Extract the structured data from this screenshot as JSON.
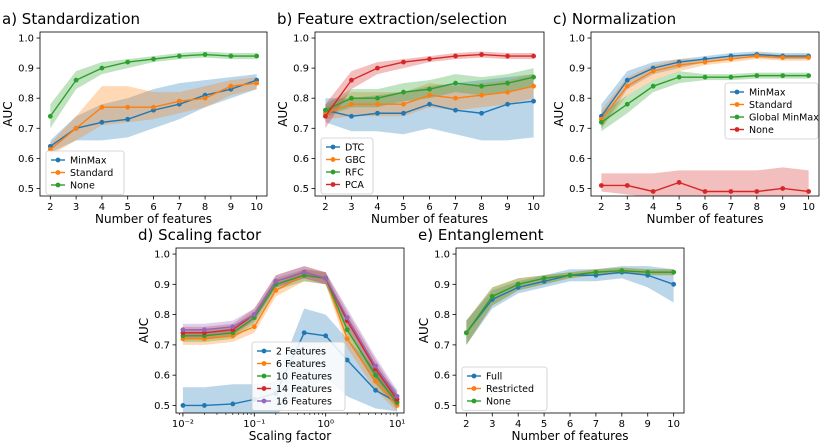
{
  "chart_data": [
    {
      "type": "line",
      "title": "a) Standardization",
      "xlabel": "Number of features",
      "ylabel": "AUC",
      "xscale": "linear",
      "xlim": [
        1.6,
        10.4
      ],
      "ylim": [
        0.475,
        1.02
      ],
      "xticks": [
        2,
        3,
        4,
        5,
        6,
        7,
        8,
        9,
        10
      ],
      "xtick_labels": [
        "2",
        "3",
        "4",
        "5",
        "6",
        "7",
        "8",
        "9",
        "10"
      ],
      "yticks": [
        0.5,
        0.6,
        0.7,
        0.8,
        0.9,
        1.0
      ],
      "ytick_labels": [
        "0.5",
        "0.6",
        "0.7",
        "0.8",
        "0.9",
        "1.0"
      ],
      "legend_position": "lower-left",
      "x": [
        2,
        3,
        4,
        5,
        6,
        7,
        8,
        9,
        10
      ],
      "series": [
        {
          "name": "MinMax",
          "color": "#1f77b4",
          "values": [
            0.64,
            0.7,
            0.72,
            0.73,
            0.76,
            0.78,
            0.81,
            0.83,
            0.86
          ],
          "lower": [
            0.62,
            0.66,
            0.66,
            0.67,
            0.7,
            0.73,
            0.77,
            0.8,
            0.83
          ],
          "upper": [
            0.66,
            0.74,
            0.78,
            0.8,
            0.83,
            0.85,
            0.86,
            0.87,
            0.88
          ]
        },
        {
          "name": "Standard",
          "color": "#ff7f0e",
          "values": [
            0.63,
            0.7,
            0.77,
            0.77,
            0.77,
            0.79,
            0.8,
            0.84,
            0.85
          ],
          "lower": [
            0.61,
            0.66,
            0.71,
            0.72,
            0.73,
            0.75,
            0.77,
            0.81,
            0.83
          ],
          "upper": [
            0.65,
            0.74,
            0.84,
            0.84,
            0.82,
            0.82,
            0.84,
            0.86,
            0.87
          ]
        },
        {
          "name": "None",
          "color": "#2ca02c",
          "values": [
            0.74,
            0.86,
            0.9,
            0.92,
            0.93,
            0.94,
            0.945,
            0.94,
            0.94
          ],
          "lower": [
            0.7,
            0.83,
            0.88,
            0.9,
            0.92,
            0.93,
            0.935,
            0.93,
            0.93
          ],
          "upper": [
            0.78,
            0.89,
            0.92,
            0.93,
            0.94,
            0.95,
            0.955,
            0.95,
            0.95
          ]
        }
      ]
    },
    {
      "type": "line",
      "title": "b) Feature extraction/selection",
      "xlabel": "Number of features",
      "ylabel": "AUC",
      "xscale": "linear",
      "xlim": [
        1.6,
        10.4
      ],
      "ylim": [
        0.475,
        1.02
      ],
      "xticks": [
        2,
        3,
        4,
        5,
        6,
        7,
        8,
        9,
        10
      ],
      "xtick_labels": [
        "2",
        "3",
        "4",
        "5",
        "6",
        "7",
        "8",
        "9",
        "10"
      ],
      "yticks": [
        0.5,
        0.6,
        0.7,
        0.8,
        0.9,
        1.0
      ],
      "ytick_labels": [
        "0.5",
        "0.6",
        "0.7",
        "0.8",
        "0.9",
        "1.0"
      ],
      "legend_position": "lower-left",
      "x": [
        2,
        3,
        4,
        5,
        6,
        7,
        8,
        9,
        10
      ],
      "series": [
        {
          "name": "DTC",
          "color": "#1f77b4",
          "values": [
            0.76,
            0.74,
            0.75,
            0.75,
            0.78,
            0.76,
            0.75,
            0.78,
            0.79
          ],
          "lower": [
            0.72,
            0.69,
            0.69,
            0.68,
            0.7,
            0.68,
            0.66,
            0.66,
            0.67
          ],
          "upper": [
            0.8,
            0.8,
            0.81,
            0.82,
            0.84,
            0.85,
            0.86,
            0.87,
            0.88
          ]
        },
        {
          "name": "GBC",
          "color": "#ff7f0e",
          "values": [
            0.75,
            0.78,
            0.78,
            0.78,
            0.81,
            0.8,
            0.81,
            0.82,
            0.84
          ],
          "lower": [
            0.73,
            0.74,
            0.74,
            0.74,
            0.77,
            0.76,
            0.77,
            0.78,
            0.8
          ],
          "upper": [
            0.77,
            0.82,
            0.82,
            0.82,
            0.85,
            0.84,
            0.85,
            0.86,
            0.88
          ]
        },
        {
          "name": "RFC",
          "color": "#2ca02c",
          "values": [
            0.76,
            0.8,
            0.8,
            0.82,
            0.83,
            0.85,
            0.84,
            0.85,
            0.87
          ],
          "lower": [
            0.74,
            0.77,
            0.77,
            0.79,
            0.8,
            0.82,
            0.81,
            0.82,
            0.84
          ],
          "upper": [
            0.78,
            0.83,
            0.83,
            0.85,
            0.86,
            0.88,
            0.87,
            0.88,
            0.9
          ]
        },
        {
          "name": "PCA",
          "color": "#d62728",
          "values": [
            0.74,
            0.86,
            0.9,
            0.92,
            0.93,
            0.94,
            0.945,
            0.94,
            0.94
          ],
          "lower": [
            0.7,
            0.83,
            0.88,
            0.9,
            0.92,
            0.93,
            0.935,
            0.93,
            0.93
          ],
          "upper": [
            0.78,
            0.89,
            0.92,
            0.93,
            0.94,
            0.95,
            0.955,
            0.95,
            0.95
          ]
        }
      ]
    },
    {
      "type": "line",
      "title": "c) Normalization",
      "xlabel": "Number of features",
      "ylabel": "AUC",
      "xscale": "linear",
      "xlim": [
        1.6,
        10.4
      ],
      "ylim": [
        0.475,
        1.02
      ],
      "xticks": [
        2,
        3,
        4,
        5,
        6,
        7,
        8,
        9,
        10
      ],
      "xtick_labels": [
        "2",
        "3",
        "4",
        "5",
        "6",
        "7",
        "8",
        "9",
        "10"
      ],
      "yticks": [
        0.5,
        0.6,
        0.7,
        0.8,
        0.9,
        1.0
      ],
      "ytick_labels": [
        "0.5",
        "0.6",
        "0.7",
        "0.8",
        "0.9",
        "1.0"
      ],
      "legend_position": "center-right",
      "x": [
        2,
        3,
        4,
        5,
        6,
        7,
        8,
        9,
        10
      ],
      "series": [
        {
          "name": "MinMax",
          "color": "#1f77b4",
          "values": [
            0.74,
            0.86,
            0.9,
            0.92,
            0.93,
            0.94,
            0.945,
            0.94,
            0.94
          ],
          "lower": [
            0.7,
            0.83,
            0.88,
            0.9,
            0.92,
            0.93,
            0.935,
            0.93,
            0.93
          ],
          "upper": [
            0.78,
            0.89,
            0.92,
            0.93,
            0.94,
            0.95,
            0.955,
            0.95,
            0.95
          ]
        },
        {
          "name": "Standard",
          "color": "#ff7f0e",
          "values": [
            0.73,
            0.84,
            0.89,
            0.91,
            0.92,
            0.93,
            0.94,
            0.935,
            0.935
          ],
          "lower": [
            0.7,
            0.81,
            0.86,
            0.89,
            0.91,
            0.92,
            0.93,
            0.925,
            0.925
          ],
          "upper": [
            0.76,
            0.87,
            0.91,
            0.93,
            0.93,
            0.94,
            0.95,
            0.945,
            0.945
          ]
        },
        {
          "name": "Global MinMax",
          "color": "#2ca02c",
          "values": [
            0.72,
            0.78,
            0.84,
            0.87,
            0.87,
            0.87,
            0.875,
            0.875,
            0.875
          ],
          "lower": [
            0.69,
            0.75,
            0.82,
            0.85,
            0.86,
            0.86,
            0.865,
            0.865,
            0.865
          ],
          "upper": [
            0.75,
            0.81,
            0.86,
            0.89,
            0.88,
            0.88,
            0.885,
            0.885,
            0.885
          ]
        },
        {
          "name": "None",
          "color": "#d62728",
          "values": [
            0.51,
            0.51,
            0.49,
            0.52,
            0.49,
            0.49,
            0.49,
            0.5,
            0.49
          ],
          "lower": [
            0.49,
            0.48,
            0.47,
            0.47,
            0.47,
            0.47,
            0.47,
            0.47,
            0.47
          ],
          "upper": [
            0.55,
            0.55,
            0.55,
            0.56,
            0.56,
            0.56,
            0.56,
            0.57,
            0.56
          ]
        }
      ]
    },
    {
      "type": "line",
      "title": "d) Scaling factor",
      "xlabel": "Scaling factor",
      "ylabel": "AUC",
      "xscale": "log",
      "xlim": [
        0.008,
        12.5
      ],
      "ylim": [
        0.475,
        1.02
      ],
      "xticks": [
        0.01,
        0.1,
        1,
        10
      ],
      "xtick_labels": [
        "10⁻²",
        "10⁻¹",
        "10⁰",
        "10¹"
      ],
      "yticks": [
        0.5,
        0.6,
        0.7,
        0.8,
        0.9,
        1.0
      ],
      "ytick_labels": [
        "0.5",
        "0.6",
        "0.7",
        "0.8",
        "0.9",
        "1.0"
      ],
      "legend_position": "lower-right",
      "x": [
        0.01,
        0.02,
        0.05,
        0.1,
        0.2,
        0.5,
        1,
        2,
        5,
        10
      ],
      "series": [
        {
          "name": "2 Features",
          "color": "#1f77b4",
          "values": [
            0.5,
            0.5,
            0.505,
            0.52,
            0.54,
            0.74,
            0.73,
            0.65,
            0.55,
            0.51
          ],
          "lower": [
            0.47,
            0.47,
            0.47,
            0.47,
            0.47,
            0.54,
            0.59,
            0.53,
            0.49,
            0.48
          ],
          "upper": [
            0.56,
            0.56,
            0.57,
            0.57,
            0.58,
            0.82,
            0.8,
            0.72,
            0.62,
            0.55
          ]
        },
        {
          "name": "6 Features",
          "color": "#ff7f0e",
          "values": [
            0.72,
            0.72,
            0.73,
            0.76,
            0.88,
            0.93,
            0.92,
            0.72,
            0.58,
            0.5
          ],
          "lower": [
            0.7,
            0.7,
            0.71,
            0.74,
            0.86,
            0.91,
            0.9,
            0.69,
            0.55,
            0.48
          ],
          "upper": [
            0.74,
            0.74,
            0.75,
            0.78,
            0.9,
            0.95,
            0.94,
            0.75,
            0.61,
            0.52
          ]
        },
        {
          "name": "10 Features",
          "color": "#2ca02c",
          "values": [
            0.73,
            0.73,
            0.74,
            0.79,
            0.9,
            0.93,
            0.92,
            0.75,
            0.6,
            0.51
          ],
          "lower": [
            0.71,
            0.71,
            0.72,
            0.77,
            0.88,
            0.91,
            0.9,
            0.72,
            0.57,
            0.49
          ],
          "upper": [
            0.75,
            0.75,
            0.76,
            0.81,
            0.92,
            0.95,
            0.94,
            0.78,
            0.63,
            0.53
          ]
        },
        {
          "name": "14 Features",
          "color": "#d62728",
          "values": [
            0.74,
            0.74,
            0.75,
            0.8,
            0.91,
            0.94,
            0.92,
            0.78,
            0.62,
            0.52
          ],
          "lower": [
            0.72,
            0.72,
            0.73,
            0.78,
            0.89,
            0.92,
            0.9,
            0.75,
            0.59,
            0.5
          ],
          "upper": [
            0.76,
            0.76,
            0.77,
            0.82,
            0.93,
            0.96,
            0.94,
            0.81,
            0.65,
            0.54
          ]
        },
        {
          "name": "16 Features",
          "color": "#9467bd",
          "values": [
            0.75,
            0.75,
            0.76,
            0.8,
            0.91,
            0.94,
            0.92,
            0.79,
            0.63,
            0.53
          ],
          "lower": [
            0.73,
            0.73,
            0.74,
            0.78,
            0.89,
            0.92,
            0.9,
            0.76,
            0.6,
            0.51
          ],
          "upper": [
            0.77,
            0.77,
            0.78,
            0.82,
            0.93,
            0.96,
            0.94,
            0.82,
            0.66,
            0.55
          ]
        }
      ]
    },
    {
      "type": "line",
      "title": "e) Entanglement",
      "xlabel": "Number of features",
      "ylabel": "AUC",
      "xscale": "linear",
      "xlim": [
        1.6,
        10.4
      ],
      "ylim": [
        0.475,
        1.02
      ],
      "xticks": [
        2,
        3,
        4,
        5,
        6,
        7,
        8,
        9,
        10
      ],
      "xtick_labels": [
        "2",
        "3",
        "4",
        "5",
        "6",
        "7",
        "8",
        "9",
        "10"
      ],
      "yticks": [
        0.5,
        0.6,
        0.7,
        0.8,
        0.9,
        1.0
      ],
      "ytick_labels": [
        "0.5",
        "0.6",
        "0.7",
        "0.8",
        "0.9",
        "1.0"
      ],
      "legend_position": "lower-left",
      "x": [
        2,
        3,
        4,
        5,
        6,
        7,
        8,
        9,
        10
      ],
      "series": [
        {
          "name": "Full",
          "color": "#1f77b4",
          "values": [
            0.74,
            0.85,
            0.89,
            0.91,
            0.93,
            0.93,
            0.94,
            0.93,
            0.9
          ],
          "lower": [
            0.7,
            0.82,
            0.87,
            0.89,
            0.91,
            0.91,
            0.92,
            0.89,
            0.84
          ],
          "upper": [
            0.78,
            0.88,
            0.91,
            0.93,
            0.95,
            0.95,
            0.96,
            0.96,
            0.95
          ]
        },
        {
          "name": "Restricted",
          "color": "#ff7f0e",
          "values": [
            0.74,
            0.86,
            0.9,
            0.92,
            0.93,
            0.94,
            0.945,
            0.94,
            0.94
          ],
          "lower": [
            0.7,
            0.83,
            0.88,
            0.9,
            0.92,
            0.93,
            0.935,
            0.93,
            0.93
          ],
          "upper": [
            0.78,
            0.89,
            0.92,
            0.93,
            0.94,
            0.95,
            0.955,
            0.95,
            0.95
          ]
        },
        {
          "name": "None",
          "color": "#2ca02c",
          "values": [
            0.74,
            0.86,
            0.9,
            0.92,
            0.93,
            0.94,
            0.945,
            0.94,
            0.94
          ],
          "lower": [
            0.7,
            0.83,
            0.88,
            0.9,
            0.92,
            0.93,
            0.935,
            0.93,
            0.93
          ],
          "upper": [
            0.78,
            0.89,
            0.92,
            0.93,
            0.94,
            0.95,
            0.955,
            0.95,
            0.95
          ]
        }
      ]
    }
  ]
}
